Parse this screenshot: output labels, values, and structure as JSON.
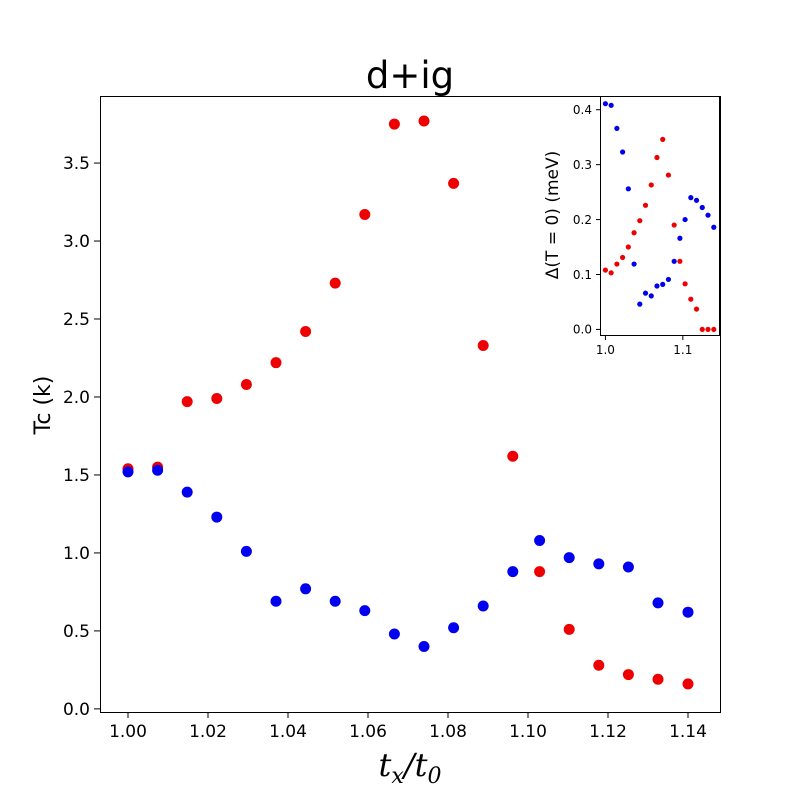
{
  "chart_data": [
    {
      "type": "scatter",
      "title": "d+ig",
      "xlabel": "t_x/t_0",
      "ylabel": "Tc (k)",
      "xlim": [
        0.993,
        1.148
      ],
      "ylim": [
        -0.02,
        3.93
      ],
      "xticks": [
        1.0,
        1.02,
        1.04,
        1.06,
        1.08,
        1.1,
        1.12,
        1.14
      ],
      "xtick_labels": [
        "1.00",
        "1.02",
        "1.04",
        "1.06",
        "1.08",
        "1.10",
        "1.12",
        "1.14"
      ],
      "yticks": [
        0.0,
        0.5,
        1.0,
        1.5,
        2.0,
        2.5,
        3.0,
        3.5
      ],
      "ytick_labels": [
        "0.0",
        "0.5",
        "1.0",
        "1.5",
        "2.0",
        "2.5",
        "3.0",
        "3.5"
      ],
      "series": [
        {
          "name": "red",
          "color": "#ee0000",
          "x": [
            1.0,
            1.0074,
            1.0148,
            1.0222,
            1.0296,
            1.037,
            1.0444,
            1.0518,
            1.0592,
            1.0666,
            1.074,
            1.0814,
            1.0888,
            1.0962,
            1.1029,
            1.1103,
            1.1177,
            1.1251,
            1.1325,
            1.14
          ],
          "values": [
            1.54,
            1.55,
            1.97,
            1.99,
            2.08,
            2.22,
            2.42,
            2.73,
            3.17,
            3.75,
            3.77,
            3.37,
            2.33,
            1.62,
            0.88,
            0.51,
            0.28,
            0.22,
            0.19,
            0.16
          ]
        },
        {
          "name": "blue",
          "color": "#0000ee",
          "x": [
            1.0,
            1.0074,
            1.0148,
            1.0222,
            1.0296,
            1.037,
            1.0444,
            1.0518,
            1.0592,
            1.0666,
            1.074,
            1.0814,
            1.0888,
            1.0962,
            1.1029,
            1.1103,
            1.1177,
            1.1251,
            1.1325,
            1.14
          ],
          "values": [
            1.52,
            1.53,
            1.39,
            1.23,
            1.01,
            0.69,
            0.77,
            0.69,
            0.63,
            0.48,
            0.4,
            0.52,
            0.66,
            0.88,
            1.08,
            0.97,
            0.93,
            0.91,
            0.68,
            0.62
          ]
        }
      ]
    },
    {
      "type": "scatter",
      "title": "",
      "xlabel": "",
      "ylabel": "Δ(T = 0) (meV)",
      "inset": true,
      "xlim": [
        0.993,
        1.148
      ],
      "ylim": [
        -0.012,
        0.425
      ],
      "xticks": [
        1.0,
        1.1
      ],
      "xtick_labels": [
        "1.0",
        "1.1"
      ],
      "yticks": [
        0.0,
        0.1,
        0.2,
        0.3,
        0.4
      ],
      "ytick_labels": [
        "0.0",
        "0.1",
        "0.2",
        "0.3",
        "0.4"
      ],
      "series": [
        {
          "name": "red",
          "color": "#ee0000",
          "x": [
            1.0,
            1.0074,
            1.0148,
            1.0222,
            1.0296,
            1.037,
            1.0444,
            1.0518,
            1.0592,
            1.0666,
            1.074,
            1.0814,
            1.0888,
            1.0962,
            1.1029,
            1.1103,
            1.1177,
            1.1251,
            1.1325,
            1.14
          ],
          "values": [
            0.108,
            0.103,
            0.119,
            0.131,
            0.15,
            0.176,
            0.198,
            0.226,
            0.263,
            0.313,
            0.346,
            0.281,
            0.19,
            0.124,
            0.083,
            0.055,
            0.037,
            0.0,
            0.0,
            0.0
          ]
        },
        {
          "name": "blue",
          "color": "#0000ee",
          "x": [
            1.0,
            1.0074,
            1.0148,
            1.0222,
            1.0296,
            1.037,
            1.0444,
            1.0518,
            1.0592,
            1.0666,
            1.074,
            1.0814,
            1.0888,
            1.0962,
            1.1029,
            1.1103,
            1.1177,
            1.1251,
            1.1325,
            1.14
          ],
          "values": [
            0.411,
            0.408,
            0.366,
            0.323,
            0.256,
            0.119,
            0.046,
            0.066,
            0.061,
            0.079,
            0.082,
            0.091,
            0.124,
            0.166,
            0.2,
            0.24,
            0.235,
            0.222,
            0.208,
            0.186
          ]
        }
      ]
    }
  ]
}
